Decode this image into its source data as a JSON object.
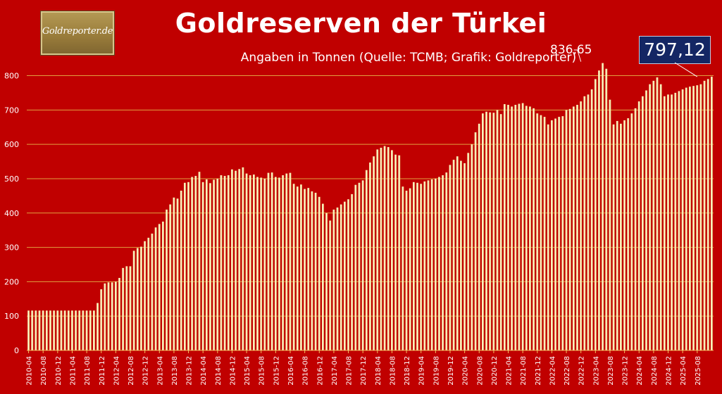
{
  "logo": {
    "text": "Goldreporter.de"
  },
  "chart_data": {
    "type": "bar",
    "title": "Goldreserven der Türkei",
    "subtitle": "Angaben in Tonnen (Quelle: TCMB; Grafik: Goldreporter)",
    "ylim": [
      0,
      800
    ],
    "yticks": [
      0,
      100,
      200,
      300,
      400,
      500,
      600,
      700,
      800
    ],
    "grid": true,
    "xtick_labels": [
      "2010-04",
      "2010-08",
      "2010-12",
      "2011-04",
      "2011-08",
      "2011-12",
      "2012-04",
      "2012-08",
      "2012-12",
      "2013-04",
      "2013-08",
      "2013-12",
      "2014-04",
      "2014-08",
      "2014-12",
      "2015-04",
      "2015-08",
      "2015-12",
      "2016-04",
      "2016-08",
      "2016-12",
      "2017-04",
      "2017-08",
      "2017-12",
      "2018-04",
      "2018-08",
      "2018-12",
      "2019-04",
      "2019-08",
      "2019-12",
      "2020-04",
      "2020-08",
      "2020-12",
      "2021-04",
      "2021-08",
      "2021-12",
      "2022-04",
      "2022-08",
      "2022-12",
      "2023-04",
      "2023-08",
      "2023-12",
      "2024-04",
      "2024-08",
      "2024-12",
      "2025-04",
      "2025-08"
    ],
    "x_start": "2010-04",
    "x_end": "2025-08",
    "values": [
      116,
      116,
      116,
      116,
      116,
      116,
      116,
      116,
      116,
      116,
      116,
      116,
      116,
      116,
      116,
      116,
      116,
      116,
      116,
      138,
      178,
      195,
      198,
      198,
      200,
      211,
      240,
      245,
      245,
      290,
      298,
      302,
      318,
      328,
      340,
      358,
      368,
      375,
      410,
      425,
      445,
      442,
      465,
      488,
      490,
      505,
      508,
      520,
      490,
      498,
      487,
      497,
      500,
      510,
      508,
      510,
      527,
      523,
      528,
      533,
      515,
      510,
      512,
      505,
      503,
      500,
      517,
      518,
      505,
      503,
      510,
      515,
      517,
      485,
      477,
      483,
      470,
      473,
      463,
      459,
      447,
      427,
      400,
      378,
      410,
      416,
      425,
      433,
      440,
      455,
      482,
      488,
      495,
      525,
      547,
      565,
      585,
      590,
      595,
      592,
      583,
      570,
      568,
      477,
      465,
      472,
      490,
      488,
      485,
      492,
      495,
      498,
      500,
      505,
      510,
      518,
      540,
      555,
      565,
      552,
      545,
      575,
      600,
      635,
      660,
      690,
      695,
      693,
      692,
      700,
      688,
      717,
      715,
      710,
      715,
      718,
      720,
      712,
      710,
      705,
      690,
      685,
      680,
      658,
      670,
      675,
      680,
      682,
      700,
      703,
      710,
      715,
      725,
      740,
      745,
      760,
      790,
      815,
      836.65,
      820,
      730,
      658,
      668,
      660,
      670,
      676,
      690,
      705,
      725,
      740,
      757,
      775,
      785,
      795,
      775,
      740,
      745,
      745,
      750,
      755,
      760,
      765,
      768,
      770,
      772,
      775,
      785,
      790,
      797.12
    ],
    "annotations": [
      {
        "label": "836,65",
        "date": "2022-12",
        "value": 836.65
      },
      {
        "label": "797,12",
        "date": "2025-08",
        "value": 797.12
      }
    ]
  }
}
